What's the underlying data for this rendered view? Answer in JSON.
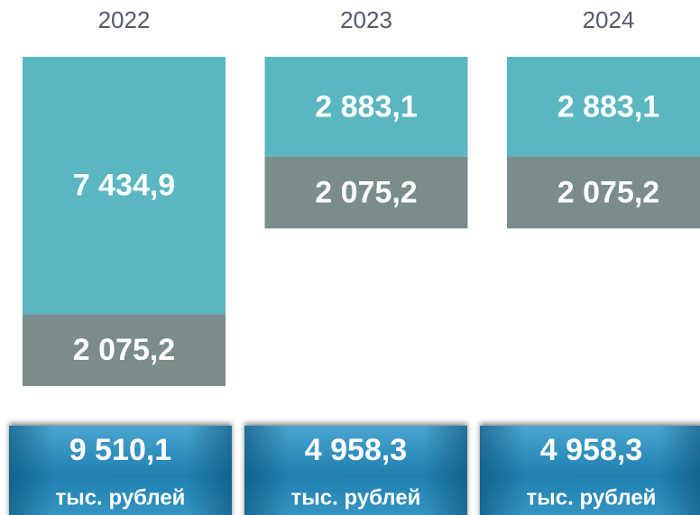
{
  "chart_data": {
    "type": "bar",
    "categories": [
      "2022",
      "2023",
      "2024"
    ],
    "series": [
      {
        "color": "#5ab6c0",
        "values": [
          7434.9,
          2883.1,
          2883.1
        ],
        "value_labels": [
          "7 434,9",
          "2 883,1",
          "2 883,1"
        ]
      },
      {
        "color": "#7a8c8b",
        "values": [
          2075.2,
          2075.2,
          2075.2
        ],
        "value_labels": [
          "2 075,2",
          "2 075,2",
          "2 075,2"
        ]
      }
    ],
    "totals": {
      "values": [
        9510.1,
        4958.3,
        4958.3
      ],
      "value_labels": [
        "9 510,1",
        "4 958,3",
        "4 958,3"
      ]
    },
    "unit_label": "тыс. рублей"
  }
}
